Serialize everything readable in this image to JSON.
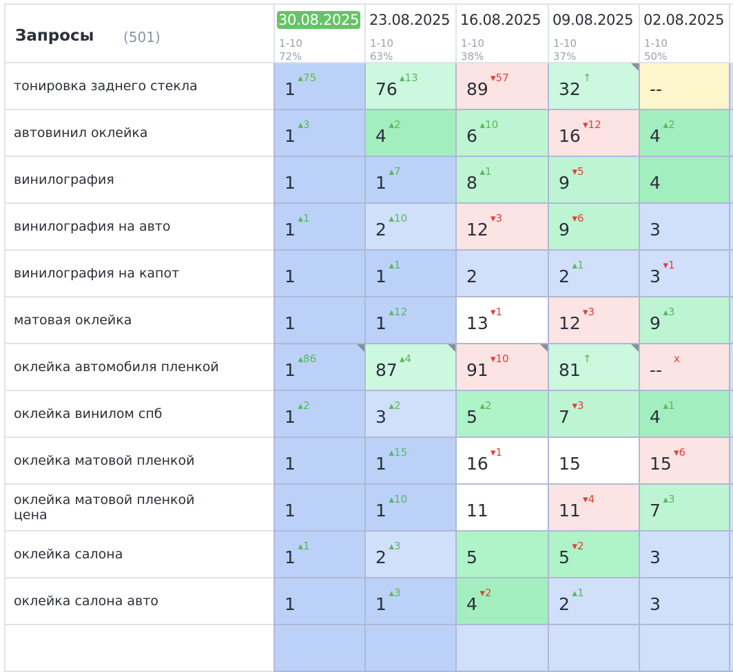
{
  "header": {
    "title": "Запросы",
    "count": "(501)"
  },
  "columns": [
    {
      "date": "30.08.2025",
      "range": "1-10",
      "percent": "72%",
      "current": true
    },
    {
      "date": "23.08.2025",
      "range": "1-10",
      "percent": "63%"
    },
    {
      "date": "16.08.2025",
      "range": "1-10",
      "percent": "38%"
    },
    {
      "date": "09.08.2025",
      "range": "1-10",
      "percent": "37%"
    },
    {
      "date": "02.08.2025",
      "range": "1-10",
      "percent": "50%"
    }
  ],
  "colors": {
    "b1": "#bbd1f8",
    "b2": "#d0dffa",
    "g4": "#a3eebf",
    "g5": "#aff3c8",
    "g6": "#bdf5d3",
    "g7": "#cbf8de",
    "pk": "#fbe4e3",
    "wh": "#ffffff",
    "yl": "#fdf6cc",
    "current_date": "#65c466",
    "up": "#5cb85c",
    "down": "#e0403a"
  },
  "rows": [
    {
      "query": "тонировка заднего стекла",
      "cells": [
        {
          "v": "1",
          "d": "▴75",
          "t": "up",
          "c": "b1"
        },
        {
          "v": "76",
          "d": "▴13",
          "t": "up",
          "c": "g7"
        },
        {
          "v": "89",
          "d": "▾57",
          "t": "down",
          "c": "pk"
        },
        {
          "v": "32",
          "d": "↑",
          "t": "up",
          "c": "g7",
          "corner": true
        },
        {
          "v": "--",
          "d": "",
          "t": "",
          "c": "yl"
        }
      ]
    },
    {
      "query": "автовинил оклейка",
      "cells": [
        {
          "v": "1",
          "d": "▴3",
          "t": "up",
          "c": "b1"
        },
        {
          "v": "4",
          "d": "▴2",
          "t": "up",
          "c": "g4"
        },
        {
          "v": "6",
          "d": "▴10",
          "t": "up",
          "c": "g6"
        },
        {
          "v": "16",
          "d": "▾12",
          "t": "down",
          "c": "pk"
        },
        {
          "v": "4",
          "d": "▴2",
          "t": "up",
          "c": "g4"
        }
      ]
    },
    {
      "query": "винилография",
      "cells": [
        {
          "v": "1",
          "d": "",
          "t": "",
          "c": "b1"
        },
        {
          "v": "1",
          "d": "▴7",
          "t": "up",
          "c": "b1"
        },
        {
          "v": "8",
          "d": "▴1",
          "t": "up",
          "c": "g6"
        },
        {
          "v": "9",
          "d": "▾5",
          "t": "down",
          "c": "g6"
        },
        {
          "v": "4",
          "d": "",
          "t": "",
          "c": "g4"
        }
      ]
    },
    {
      "query": "винилография на авто",
      "cells": [
        {
          "v": "1",
          "d": "▴1",
          "t": "up",
          "c": "b1"
        },
        {
          "v": "2",
          "d": "▴10",
          "t": "up",
          "c": "b2"
        },
        {
          "v": "12",
          "d": "▾3",
          "t": "down",
          "c": "pk"
        },
        {
          "v": "9",
          "d": "▾6",
          "t": "down",
          "c": "g6"
        },
        {
          "v": "3",
          "d": "",
          "t": "",
          "c": "b2"
        }
      ]
    },
    {
      "query": "винилография на капот",
      "cells": [
        {
          "v": "1",
          "d": "",
          "t": "",
          "c": "b1"
        },
        {
          "v": "1",
          "d": "▴1",
          "t": "up",
          "c": "b1"
        },
        {
          "v": "2",
          "d": "",
          "t": "",
          "c": "b2"
        },
        {
          "v": "2",
          "d": "▴1",
          "t": "up",
          "c": "b2"
        },
        {
          "v": "3",
          "d": "▾1",
          "t": "down",
          "c": "b2"
        }
      ]
    },
    {
      "query": "матовая оклейка",
      "cells": [
        {
          "v": "1",
          "d": "",
          "t": "",
          "c": "b1"
        },
        {
          "v": "1",
          "d": "▴12",
          "t": "up",
          "c": "b1"
        },
        {
          "v": "13",
          "d": "▾1",
          "t": "down",
          "c": "wh"
        },
        {
          "v": "12",
          "d": "▾3",
          "t": "down",
          "c": "pk"
        },
        {
          "v": "9",
          "d": "▴3",
          "t": "up",
          "c": "g6"
        }
      ]
    },
    {
      "query": "оклейка автомобиля пленкой",
      "cells": [
        {
          "v": "1",
          "d": "▴86",
          "t": "up",
          "c": "b1",
          "corner": true
        },
        {
          "v": "87",
          "d": "▴4",
          "t": "up",
          "c": "g7",
          "corner": true
        },
        {
          "v": "91",
          "d": "▾10",
          "t": "down",
          "c": "pk",
          "corner": true
        },
        {
          "v": "81",
          "d": "↑",
          "t": "up",
          "c": "g7",
          "corner": true
        },
        {
          "v": "--",
          "d": "x",
          "t": "down",
          "c": "pk"
        }
      ]
    },
    {
      "query": "оклейка винилом спб",
      "cells": [
        {
          "v": "1",
          "d": "▴2",
          "t": "up",
          "c": "b1"
        },
        {
          "v": "3",
          "d": "▴2",
          "t": "up",
          "c": "b2"
        },
        {
          "v": "5",
          "d": "▴2",
          "t": "up",
          "c": "g5"
        },
        {
          "v": "7",
          "d": "▾3",
          "t": "down",
          "c": "g6"
        },
        {
          "v": "4",
          "d": "▴1",
          "t": "up",
          "c": "g4"
        }
      ]
    },
    {
      "query": "оклейка матовой пленкой",
      "cells": [
        {
          "v": "1",
          "d": "",
          "t": "",
          "c": "b1"
        },
        {
          "v": "1",
          "d": "▴15",
          "t": "up",
          "c": "b1"
        },
        {
          "v": "16",
          "d": "▾1",
          "t": "down",
          "c": "wh"
        },
        {
          "v": "15",
          "d": "",
          "t": "",
          "c": "wh"
        },
        {
          "v": "15",
          "d": "▾6",
          "t": "down",
          "c": "pk"
        }
      ]
    },
    {
      "query": "оклейка матовой пленкой цена",
      "cells": [
        {
          "v": "1",
          "d": "",
          "t": "",
          "c": "b1"
        },
        {
          "v": "1",
          "d": "▴10",
          "t": "up",
          "c": "b1"
        },
        {
          "v": "11",
          "d": "",
          "t": "",
          "c": "wh"
        },
        {
          "v": "11",
          "d": "▾4",
          "t": "down",
          "c": "pk"
        },
        {
          "v": "7",
          "d": "▴3",
          "t": "up",
          "c": "g6"
        }
      ]
    },
    {
      "query": "оклейка салона",
      "cells": [
        {
          "v": "1",
          "d": "▴1",
          "t": "up",
          "c": "b1"
        },
        {
          "v": "2",
          "d": "▴3",
          "t": "up",
          "c": "b2"
        },
        {
          "v": "5",
          "d": "",
          "t": "",
          "c": "g5"
        },
        {
          "v": "5",
          "d": "▾2",
          "t": "down",
          "c": "g5"
        },
        {
          "v": "3",
          "d": "",
          "t": "",
          "c": "b2"
        }
      ]
    },
    {
      "query": "оклейка салона авто",
      "cells": [
        {
          "v": "1",
          "d": "",
          "t": "",
          "c": "b1"
        },
        {
          "v": "1",
          "d": "▴3",
          "t": "up",
          "c": "b1"
        },
        {
          "v": "4",
          "d": "▾2",
          "t": "down",
          "c": "g4"
        },
        {
          "v": "2",
          "d": "▴1",
          "t": "up",
          "c": "b2"
        },
        {
          "v": "3",
          "d": "",
          "t": "",
          "c": "b2"
        }
      ]
    }
  ]
}
